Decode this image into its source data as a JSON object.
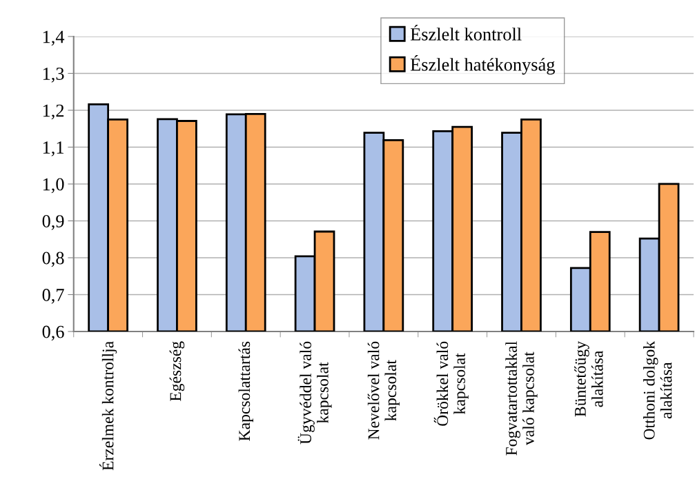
{
  "chart_data": {
    "type": "bar",
    "categories": [
      "Érzelmek kontrollja",
      "Egészség",
      "Kapcsolattartás",
      "Ügyvéddel való\nkapcsolat",
      "Nevelővel való\nkapcsolat",
      "Őrökkel való\nkapcsolat",
      "Fogvatartottakkal\nvaló kapcsolat",
      "Büntetőügy\nalakítása",
      "Otthoni dolgok\nalakítása"
    ],
    "series": [
      {
        "name": "Észlelt kontroll",
        "color": "#a9bfe7",
        "values": [
          1.216,
          1.176,
          1.189,
          0.804,
          1.139,
          1.143,
          1.139,
          0.772,
          0.852
        ]
      },
      {
        "name": "Észlelt hatékonyság",
        "color": "#fba65a",
        "values": [
          1.175,
          1.171,
          1.19,
          0.871,
          1.119,
          1.155,
          1.175,
          0.87,
          1.0
        ]
      }
    ],
    "ylim": [
      0.6,
      1.4
    ],
    "yticks": [
      {
        "value": 0.6,
        "label": "0,6"
      },
      {
        "value": 0.7,
        "label": "0,7"
      },
      {
        "value": 0.8,
        "label": "0,8"
      },
      {
        "value": 0.9,
        "label": "0,9"
      },
      {
        "value": 1.0,
        "label": "1,0"
      },
      {
        "value": 1.1,
        "label": "1,1"
      },
      {
        "value": 1.2,
        "label": "1,2"
      },
      {
        "value": 1.3,
        "label": "1,3"
      },
      {
        "value": 1.4,
        "label": "1,4"
      }
    ],
    "grid": "y",
    "legend": "top"
  }
}
